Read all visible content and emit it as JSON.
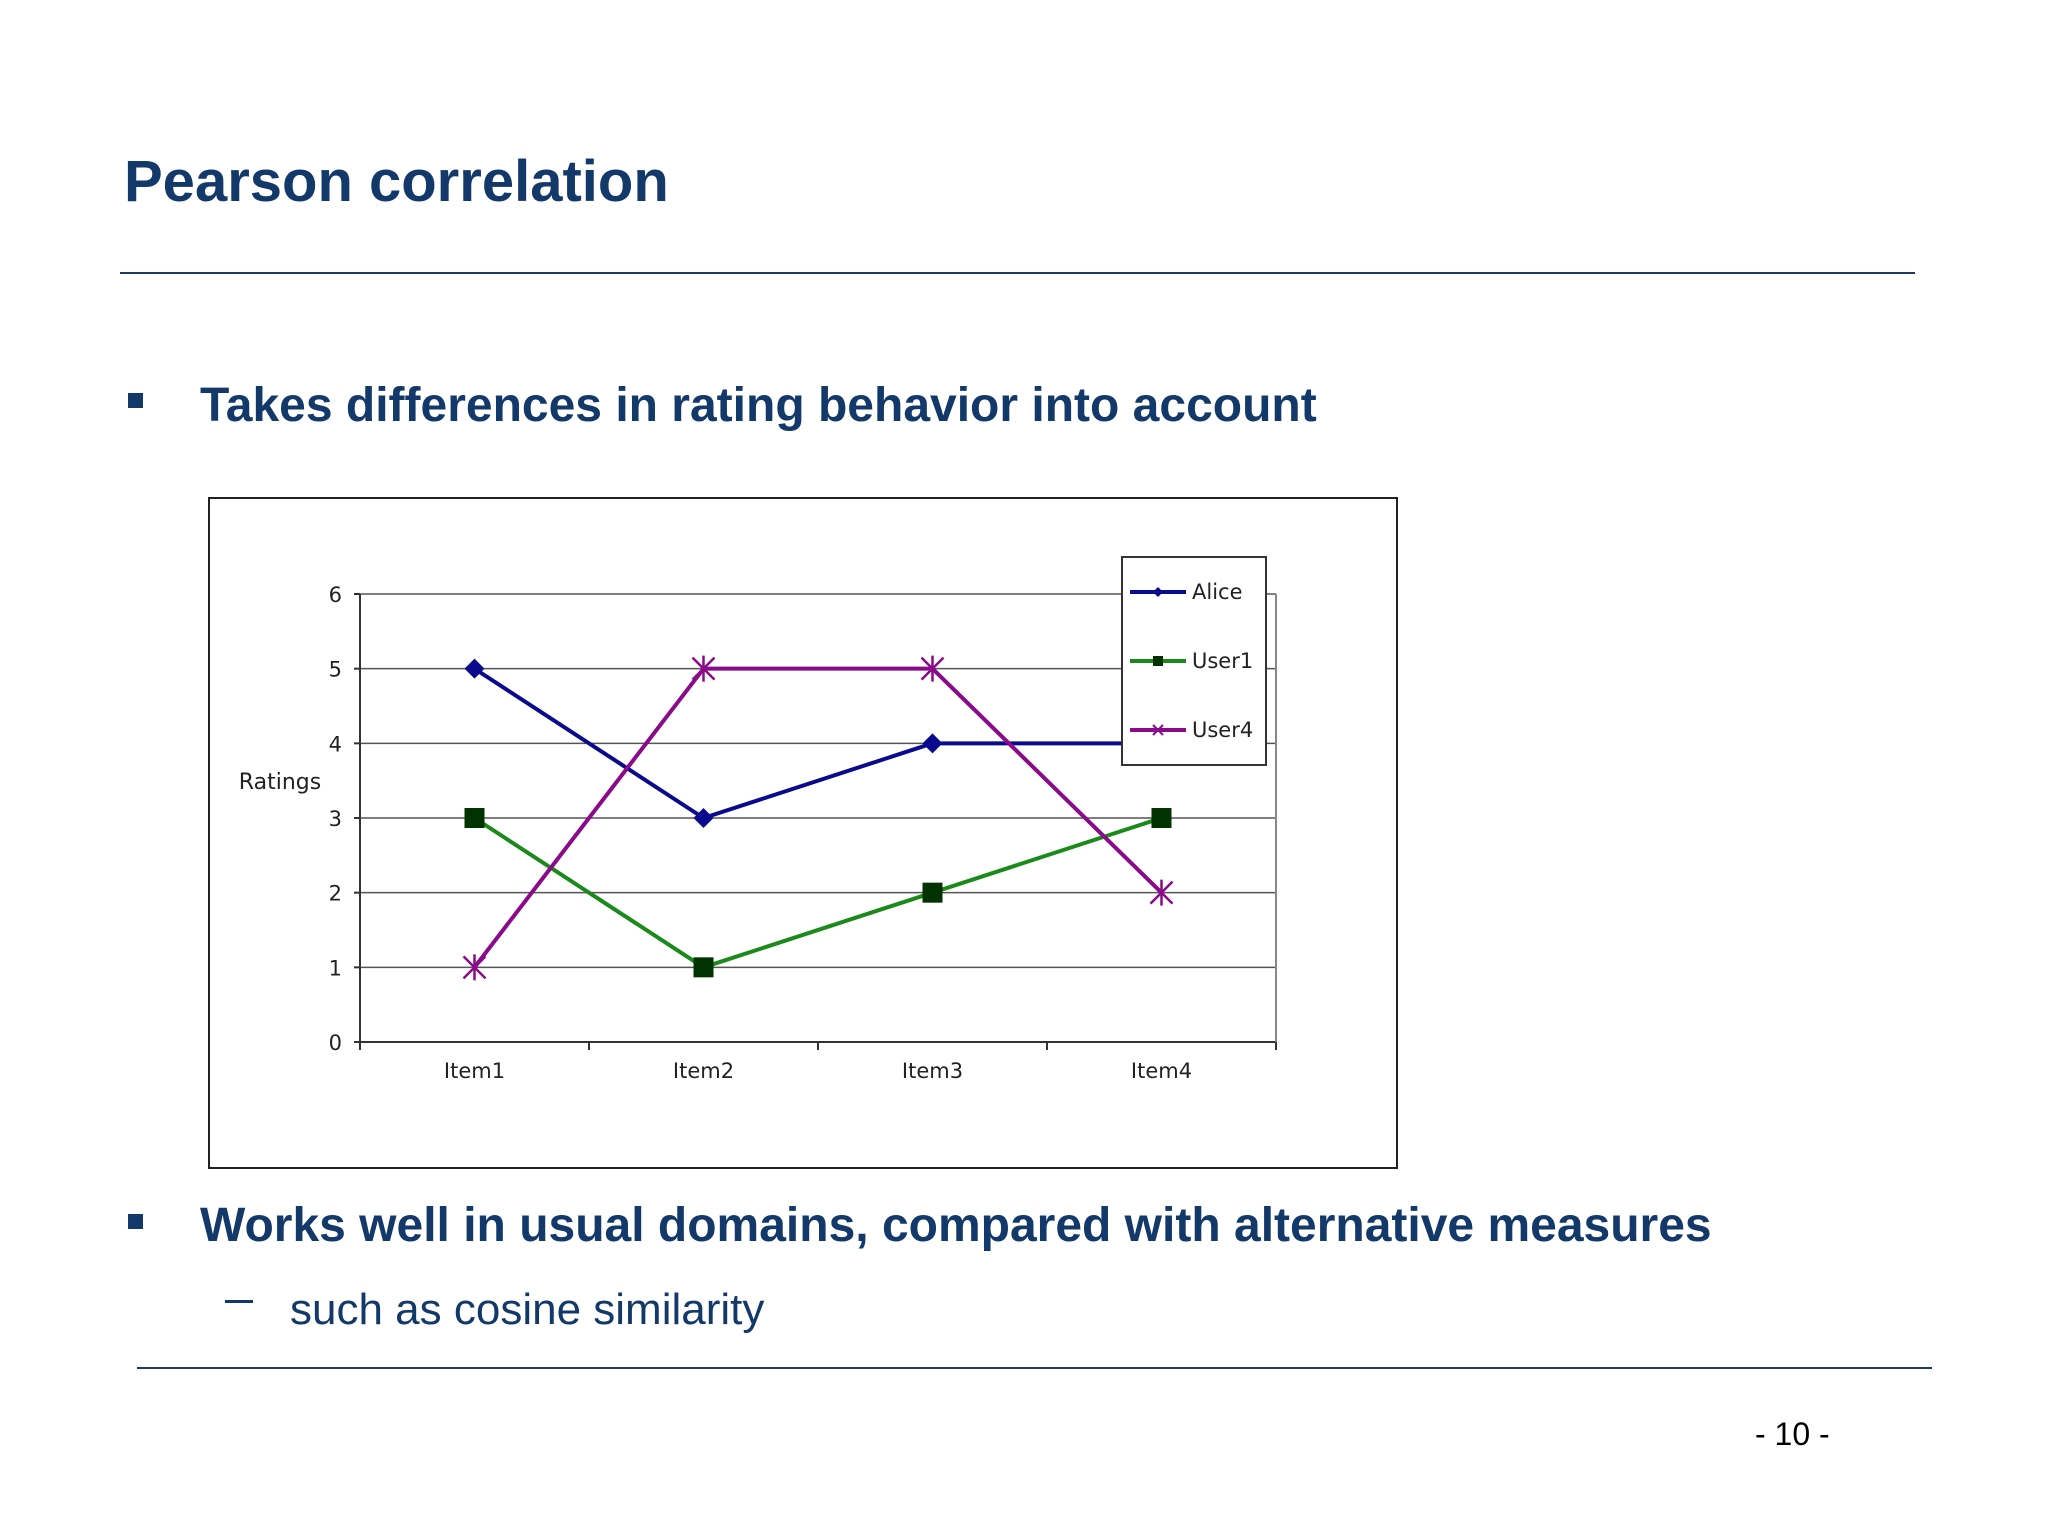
{
  "slide": {
    "title": "Pearson correlation",
    "bullets": [
      {
        "text": "Takes differences in rating behavior into account"
      },
      {
        "text": "Works well in usual domains, compared with alternative measures"
      }
    ],
    "sub_bullet": "such as cosine similarity",
    "page_number": "- 10 -"
  },
  "chart_data": {
    "type": "line",
    "categories": [
      "Item1",
      "Item2",
      "Item3",
      "Item4"
    ],
    "ylabel": "Ratings",
    "ylim": [
      0,
      6
    ],
    "yticks": [
      "0",
      "1",
      "2",
      "3",
      "4",
      "5",
      "6"
    ],
    "grid": true,
    "legend_position": "top-right",
    "series": [
      {
        "name": "Alice",
        "values": [
          5,
          3,
          4,
          4
        ],
        "color": "#0a0a8c",
        "marker": "diamond"
      },
      {
        "name": "User1",
        "values": [
          3,
          1,
          2,
          3
        ],
        "color": "#1a8a1a",
        "marker": "square",
        "marker_color": "#003300"
      },
      {
        "name": "User4",
        "values": [
          1,
          5,
          5,
          2
        ],
        "color": "#8a0a8a",
        "marker": "star"
      }
    ]
  }
}
